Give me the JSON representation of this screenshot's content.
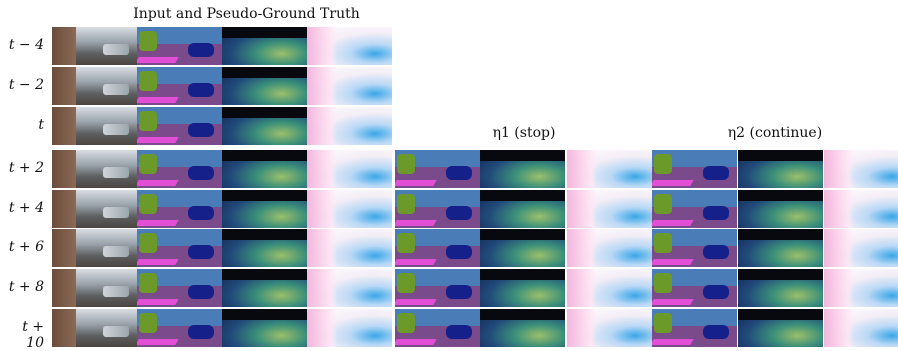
{
  "figure": {
    "title": "Input and Pseudo-Ground Truth",
    "group_titles": [
      "η1 (stop)",
      "η2 (continue)"
    ],
    "row_labels": [
      "t − 4",
      "t − 2",
      "t",
      "t + 2",
      "t + 4",
      "t + 6",
      "t + 8",
      "t + 10"
    ]
  },
  "colors": {
    "segmentation_sky": "#4a7cb8",
    "segmentation_road": "#7a4a8a",
    "segmentation_vehicle": "#16208a",
    "segmentation_vegetation": "#6b9a2a",
    "segmentation_sidewalk": "#e24fd6",
    "depth_near": "#9bbf6a",
    "depth_far": "#12204a",
    "flow_accent": "#3aa7e8"
  }
}
